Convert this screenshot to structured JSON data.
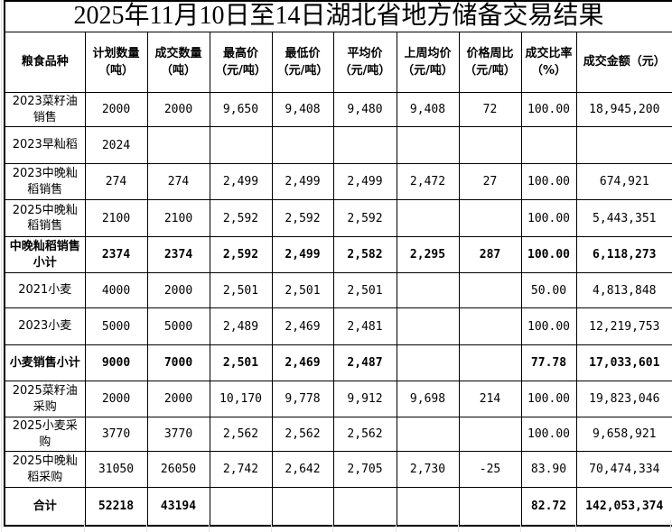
{
  "title": "2025年11月10日至14日湖北省地方储备交易结果",
  "table": {
    "columns": [
      "粮食品种",
      "计划数量\n（吨）",
      "成交数量\n（吨）",
      "最高价\n（元/吨）",
      "最低价\n（元/吨）",
      "平均价\n（元/吨）",
      "上周均价\n（元/吨）",
      "价格周比\n（元/吨）",
      "成交比率\n（%）",
      "成交金额（元）"
    ],
    "rows": [
      {
        "bold": false,
        "cells": [
          "2023菜籽油销售",
          "2000",
          "2000",
          "9,650",
          "9,408",
          "9,480",
          "9,408",
          "72",
          "100.00",
          "18,945,200"
        ]
      },
      {
        "bold": false,
        "cells": [
          "2023早籼稻",
          "2024",
          "",
          "",
          "",
          "",
          "",
          "",
          "",
          ""
        ]
      },
      {
        "bold": false,
        "cells": [
          "2023中晚籼稻销售",
          "274",
          "274",
          "2,499",
          "2,499",
          "2,499",
          "2,472",
          "27",
          "100.00",
          "674,921"
        ]
      },
      {
        "bold": false,
        "cells": [
          "2025中晚籼稻销售",
          "2100",
          "2100",
          "2,592",
          "2,592",
          "2,592",
          "",
          "",
          "100.00",
          "5,443,351"
        ]
      },
      {
        "bold": true,
        "cells": [
          "中晚籼稻销售小计",
          "2374",
          "2374",
          "2,592",
          "2,499",
          "2,582",
          "2,295",
          "287",
          "100.00",
          "6,118,273"
        ]
      },
      {
        "bold": false,
        "cells": [
          "2021小麦",
          "4000",
          "2000",
          "2,501",
          "2,501",
          "2,501",
          "",
          "",
          "50.00",
          "4,813,848"
        ]
      },
      {
        "bold": false,
        "cells": [
          "2023小麦",
          "5000",
          "5000",
          "2,489",
          "2,469",
          "2,481",
          "",
          "",
          "100.00",
          "12,219,753"
        ]
      },
      {
        "bold": true,
        "cells": [
          "小麦销售小计",
          "9000",
          "7000",
          "2,501",
          "2,469",
          "2,487",
          "",
          "",
          "77.78",
          "17,033,601"
        ]
      },
      {
        "bold": false,
        "cells": [
          "2025菜籽油采购",
          "2000",
          "2000",
          "10,170",
          "9,778",
          "9,912",
          "9,698",
          "214",
          "100.00",
          "19,823,046"
        ]
      },
      {
        "bold": false,
        "cells": [
          "2025小麦采购",
          "3770",
          "3770",
          "2,562",
          "2,562",
          "2,562",
          "",
          "",
          "100.00",
          "9,658,921"
        ]
      },
      {
        "bold": false,
        "cells": [
          "2025中晚籼稻采购",
          "31050",
          "26050",
          "2,742",
          "2,642",
          "2,705",
          "2,730",
          "-25",
          "83.90",
          "70,474,334"
        ]
      },
      {
        "bold": true,
        "cells": [
          "合计",
          "52218",
          "43194",
          "",
          "",
          "",
          "",
          "",
          "82.72",
          "142,053,374"
        ]
      }
    ]
  },
  "colors": {
    "table_border": "#000000",
    "text": "#000000",
    "background": "#ffffff",
    "faint_grid": "#e2e2e2"
  }
}
